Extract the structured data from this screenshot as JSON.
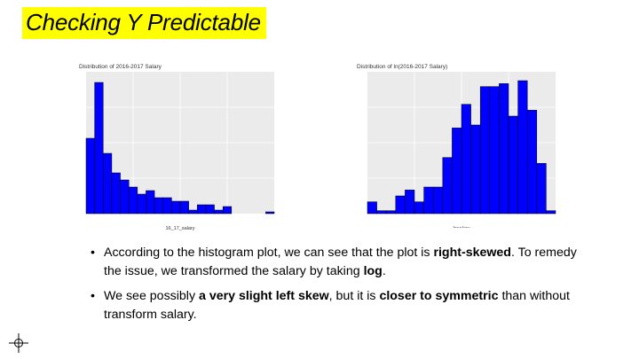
{
  "slide": {
    "title": "Checking Y Predictable",
    "title_highlight_color": "#ffff00"
  },
  "bullets": [
    {
      "parts": [
        {
          "text": "According to the histogram plot, we can see that the plot is ",
          "bold": false
        },
        {
          "text": "right-skewed",
          "bold": true
        },
        {
          "text": ". To remedy the issue, we transformed the salary by taking ",
          "bold": false
        },
        {
          "text": "log",
          "bold": true
        },
        {
          "text": ".",
          "bold": false
        }
      ]
    },
    {
      "parts": [
        {
          "text": "We see possibly ",
          "bold": false
        },
        {
          "text": "a very slight left skew",
          "bold": true
        },
        {
          "text": ", but it is ",
          "bold": false
        },
        {
          "text": "closer to symmetric",
          "bold": true
        },
        {
          "text": " than without transform salary.",
          "bold": false
        }
      ]
    }
  ],
  "chart_data": [
    {
      "type": "bar",
      "title": "Distribution of 2016-2017 Salary",
      "xlabel": "16_17_salary",
      "ylabel": "",
      "bar_color": "#0000ff",
      "panel_color": "#ebebeb",
      "grid": true,
      "ylim": [
        0,
        160
      ],
      "values": [
        85,
        148,
        68,
        46,
        38,
        30,
        22,
        26,
        18,
        18,
        14,
        14,
        4,
        10,
        10,
        4,
        8,
        0,
        0,
        0,
        0,
        2
      ]
    },
    {
      "type": "bar",
      "title": "Distribution of ln(2016-2017 Salary)",
      "xlabel": "lnsalary",
      "ylabel": "",
      "bar_color": "#0000ff",
      "panel_color": "#ebebeb",
      "grid": true,
      "ylim": [
        0,
        48
      ],
      "values": [
        4,
        1,
        1,
        6,
        8,
        4,
        9,
        9,
        19,
        29,
        37,
        30,
        43,
        43,
        44,
        33,
        45,
        35,
        17,
        1
      ]
    }
  ]
}
